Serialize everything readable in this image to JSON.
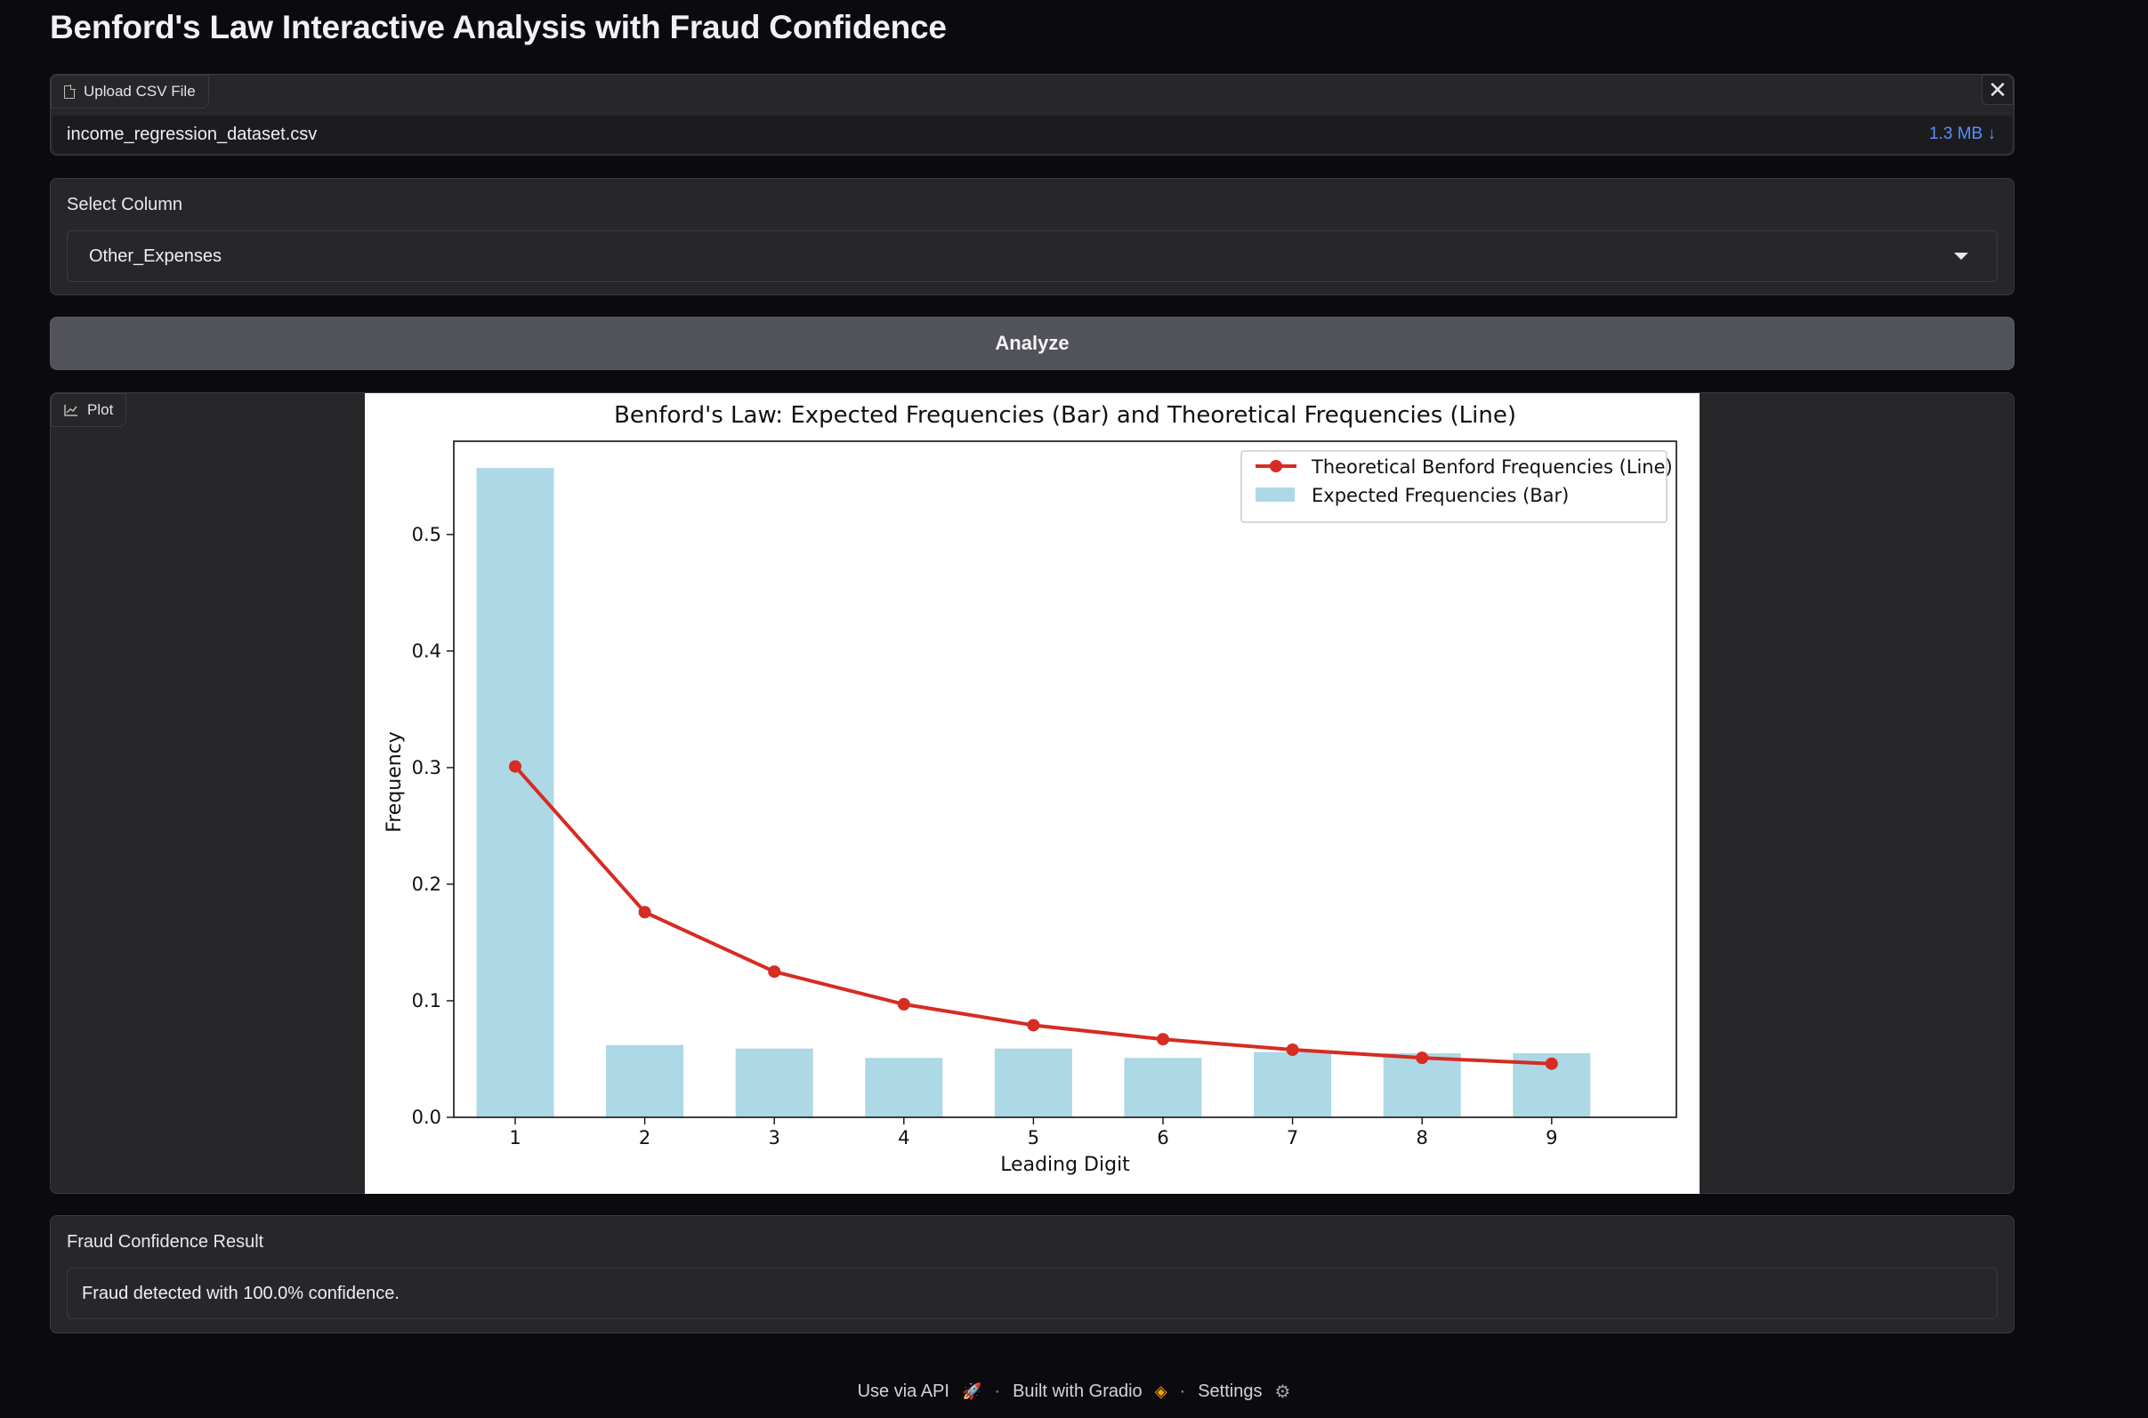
{
  "app": {
    "title": "Benford's Law Interactive Analysis with Fraud Confidence"
  },
  "upload": {
    "label": "Upload CSV File",
    "file_name": "income_regression_dataset.csv",
    "file_size": "1.3 MB ↓",
    "close": "✕"
  },
  "select": {
    "label": "Select Column",
    "value": "Other_Expenses"
  },
  "analyze": {
    "label": "Analyze"
  },
  "plot": {
    "label": "Plot"
  },
  "chart_data": {
    "type": "bar",
    "title": "Benford's Law: Expected Frequencies (Bar) and Theoretical Frequencies (Line)",
    "xlabel": "Leading Digit",
    "ylabel": "Frequency",
    "categories": [
      "1",
      "2",
      "3",
      "4",
      "5",
      "6",
      "7",
      "8",
      "9"
    ],
    "ylim": [
      0,
      0.58
    ],
    "yticks": [
      0.0,
      0.1,
      0.2,
      0.3,
      0.4,
      0.5
    ],
    "ytick_labels": [
      "0.0",
      "0.1",
      "0.2",
      "0.3",
      "0.4",
      "0.5"
    ],
    "legend_position": "top-right",
    "grid": false,
    "series": [
      {
        "name": "Theoretical Benford Frequencies (Line)",
        "type": "line",
        "color": "#d62c22",
        "values": [
          0.301,
          0.176,
          0.125,
          0.097,
          0.079,
          0.067,
          0.058,
          0.051,
          0.046
        ]
      },
      {
        "name": "Expected Frequencies (Bar)",
        "type": "bar",
        "color": "#add8e6",
        "values": [
          0.557,
          0.062,
          0.059,
          0.051,
          0.059,
          0.051,
          0.056,
          0.055,
          0.055
        ]
      }
    ]
  },
  "result": {
    "label": "Fraud Confidence Result",
    "text": "Fraud detected with 100.0% confidence."
  },
  "footer": {
    "api": "Use via API",
    "built": "Built with Gradio",
    "settings": "Settings",
    "sep": "·"
  }
}
